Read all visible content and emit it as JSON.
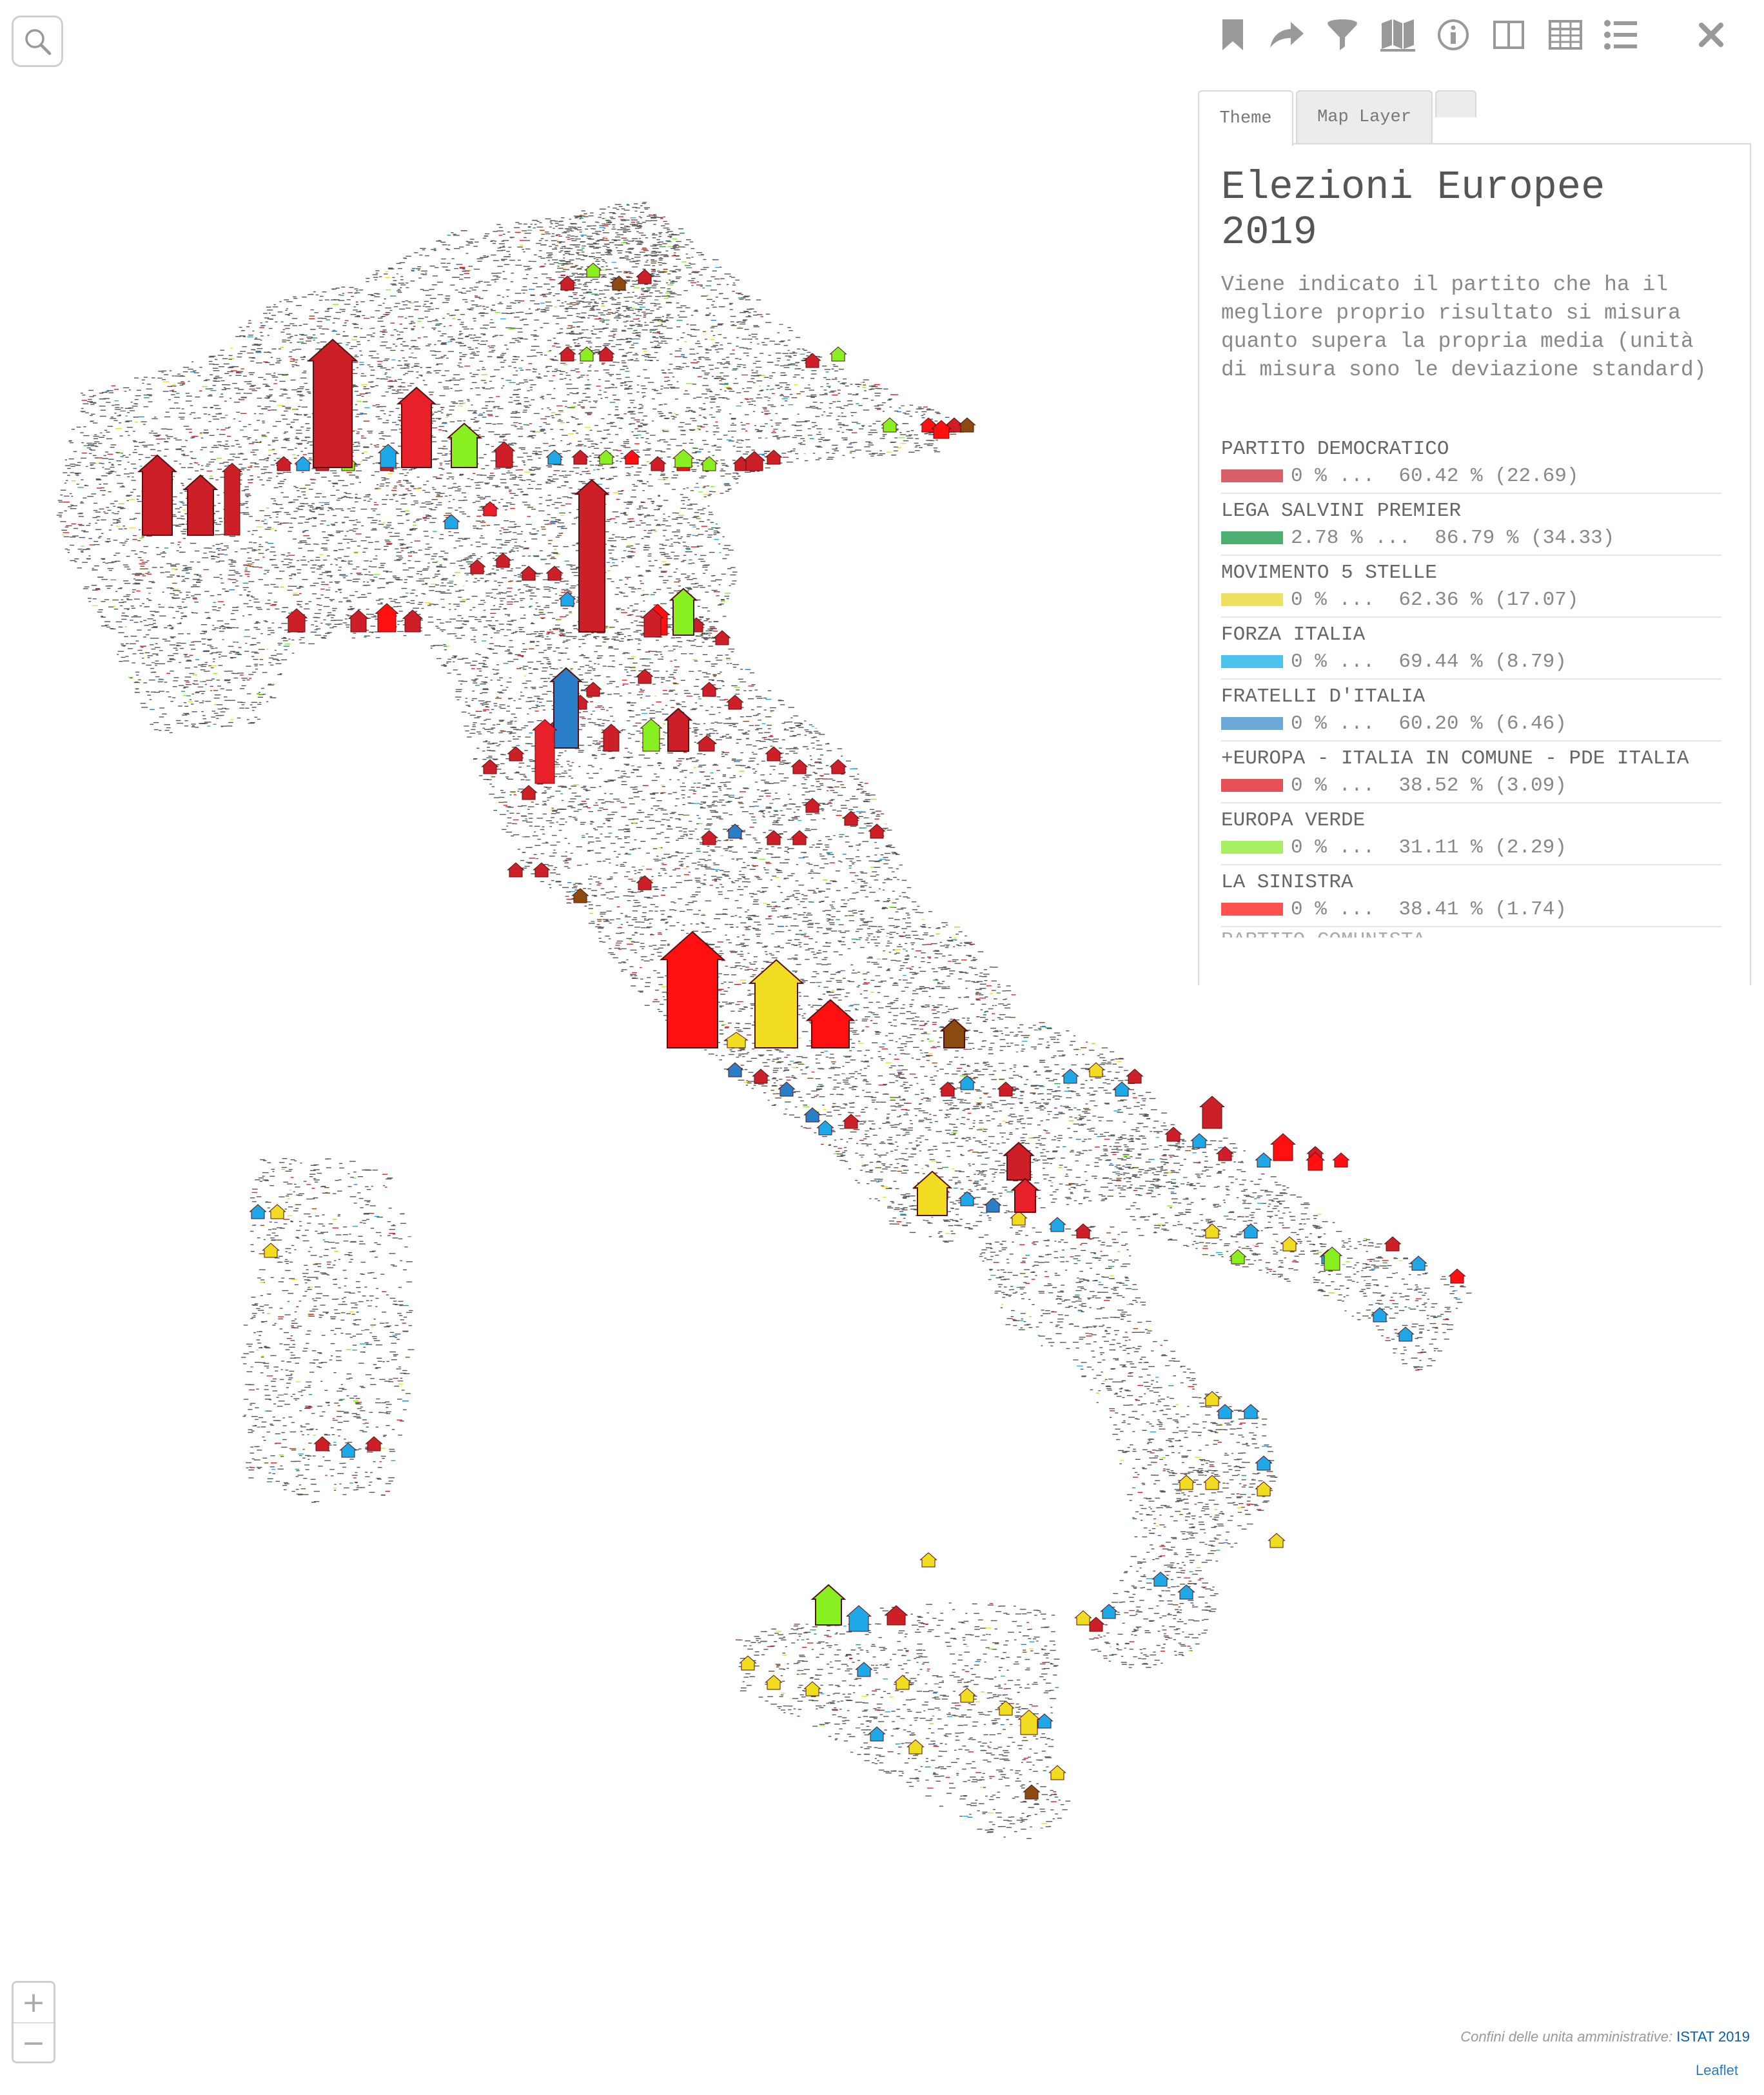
{
  "search": {
    "icon": "search-icon"
  },
  "toolbar": {
    "icons": [
      "bookmark-icon",
      "share-icon",
      "filter-icon",
      "map-icon",
      "info-icon",
      "split-view-icon",
      "table-icon",
      "list-icon",
      "close-icon"
    ]
  },
  "tabs": [
    {
      "label": "Theme"
    },
    {
      "label": "Map Layer"
    },
    {
      "label": ""
    }
  ],
  "panel": {
    "title": "Elezioni Europee 2019",
    "description": "Viene indicato il partito che ha il megliore proprio risultato si misura quanto supera la propria media (unità di misura sono le deviazione standard)",
    "legend": [
      {
        "name": "PARTITO DEMOCRATICO",
        "range": "0 % ...  60.42 % (22.69)",
        "color": "#d96068"
      },
      {
        "name": "LEGA SALVINI PREMIER",
        "range": "2.78 % ...  86.79 % (34.33)",
        "color": "#4caf72"
      },
      {
        "name": "MOVIMENTO 5 STELLE",
        "range": "0 % ...  62.36 % (17.07)",
        "color": "#f0e060"
      },
      {
        "name": "FORZA ITALIA",
        "range": "0 % ...  69.44 % (8.79)",
        "color": "#4cc3ec"
      },
      {
        "name": "FRATELLI D'ITALIA",
        "range": "0 % ...  60.20 % (6.46)",
        "color": "#6aaad8"
      },
      {
        "name": "+EUROPA - ITALIA IN COMUNE - PDE ITALIA",
        "range": "0 % ...  38.52 % (3.09)",
        "color": "#e85058"
      },
      {
        "name": "EUROPA VERDE",
        "range": "0 % ...  31.11 % (2.29)",
        "color": "#a8f060"
      },
      {
        "name": "LA SINISTRA",
        "range": "0 % ...  38.41 % (1.74)",
        "color": "#ff5050"
      }
    ],
    "legend_cut": "PARTITO COMUNISTA"
  },
  "zoom": {
    "in": "+",
    "out": "−"
  },
  "attribution": {
    "text": "Confini delle unita amministrative:",
    "link": "ISTAT 2019",
    "leaflet": "Leaflet"
  },
  "colors": {
    "pd": "#cc1f28",
    "lega": "#2e9e4a",
    "m5s": "#f0dc20",
    "fi": "#1ea8e8",
    "fdi": "#2a7ec8",
    "europa": "#e8202a",
    "verde": "#88f020",
    "sinistra": "#ff1010",
    "other": "#8b4a10"
  },
  "map_symbols": {
    "big_arrows": [
      {
        "party": "pd",
        "level": 3.2
      },
      {
        "party": "europa",
        "level": 2.0
      },
      {
        "party": "verde",
        "level": 1.1
      },
      {
        "party": "pd",
        "level": 2.0
      },
      {
        "party": "pd",
        "level": 1.5
      },
      {
        "party": "pd",
        "level": 1.8
      },
      {
        "party": "pd",
        "level": 3.8
      },
      {
        "party": "fdi",
        "level": 2.0
      },
      {
        "party": "europa",
        "level": 1.6
      },
      {
        "party": "sinistra",
        "level": 2.9
      },
      {
        "party": "m5s",
        "level": 2.2
      },
      {
        "party": "sinistra",
        "level": 1.2
      },
      {
        "party": "m5s",
        "level": 1.1
      },
      {
        "party": "verde",
        "level": 1.0
      }
    ]
  }
}
